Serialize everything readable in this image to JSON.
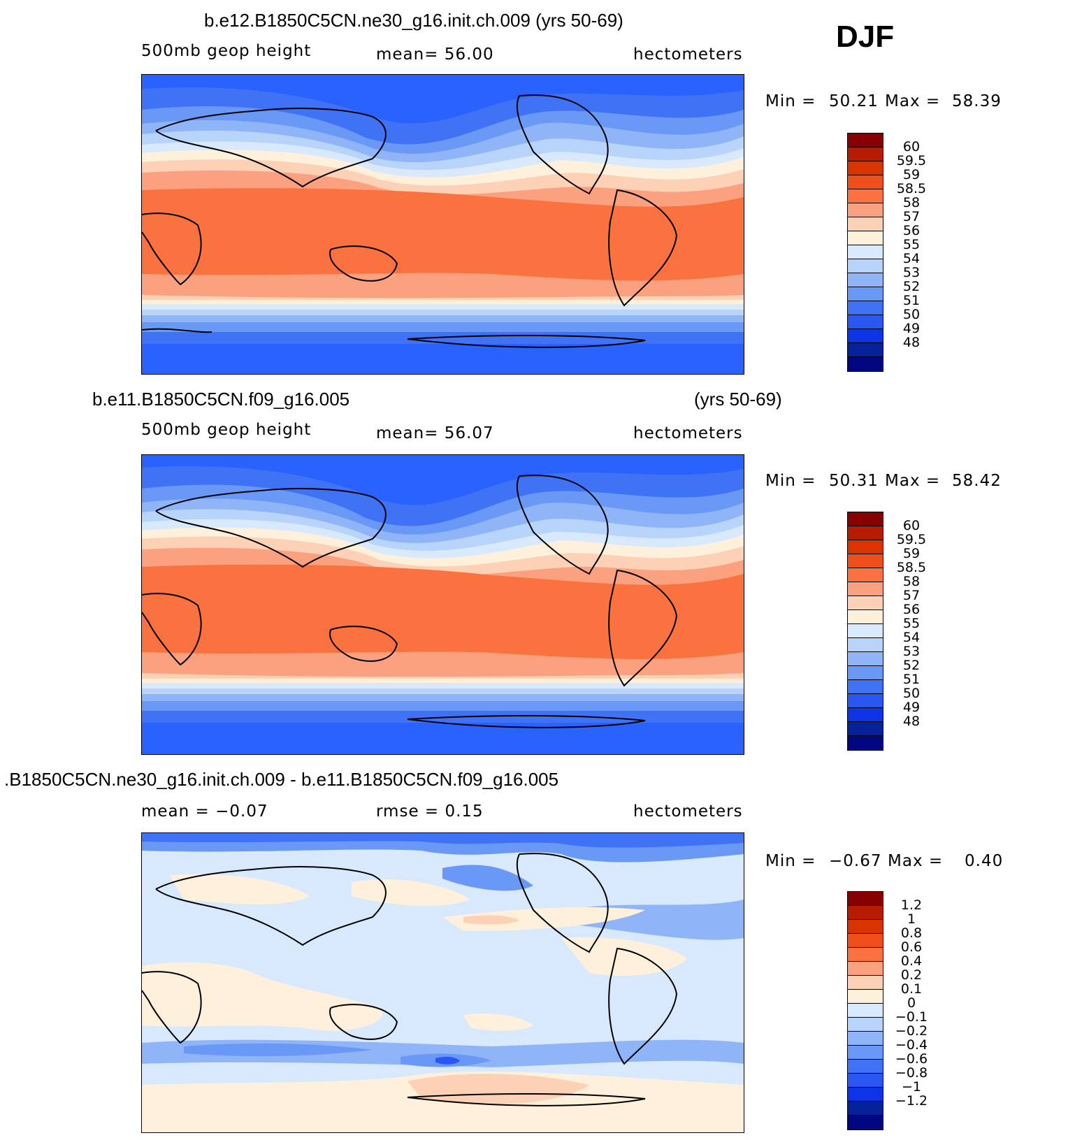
{
  "season": "DJF",
  "palette_abs": [
    "#890000",
    "#b71c00",
    "#d93300",
    "#f04f1b",
    "#fa7240",
    "#fca180",
    "#fdd1b5",
    "#fff0dc",
    "#d8e9fd",
    "#b8d4fb",
    "#8fb5f8",
    "#6a98f7",
    "#3f72f5",
    "#2a56f1",
    "#0d33e6",
    "#06229a",
    "#000780"
  ],
  "palette_diff": [
    "#890000",
    "#b71c00",
    "#d93300",
    "#f04f1b",
    "#fa7240",
    "#fca180",
    "#fdd1b5",
    "#fff0dc",
    "#d8e9fd",
    "#b8d4fb",
    "#8fb5f8",
    "#6a98f7",
    "#3f72f5",
    "#2a56f1",
    "#0d33e6",
    "#06229a",
    "#000780"
  ],
  "panels": [
    {
      "title": "b.e12.B1850C5CN.ne30_g16.init.ch.009 (yrs 50-69)",
      "title_right": "",
      "left": "500mb geop height",
      "mid": "mean=   56.00",
      "right": "hectometers",
      "min_label": "Min =",
      "min_val": "50.21",
      "max_label": "Max =",
      "max_val": "58.39",
      "levels": [
        "60",
        "59.5",
        "59",
        "58.5",
        "58",
        "57",
        "56",
        "55",
        "54",
        "53",
        "52",
        "51",
        "50",
        "49",
        "48"
      ],
      "field": "abs"
    },
    {
      "title": "b.e11.B1850C5CN.f09_g16.005",
      "title_right": "(yrs 50-69)",
      "left": "500mb geop height",
      "mid": "mean=   56.07",
      "right": "hectometers",
      "min_label": "Min =",
      "min_val": "50.31",
      "max_label": "Max =",
      "max_val": "58.42",
      "levels": [
        "60",
        "59.5",
        "59",
        "58.5",
        "58",
        "57",
        "56",
        "55",
        "54",
        "53",
        "52",
        "51",
        "50",
        "49",
        "48"
      ],
      "field": "abs"
    },
    {
      "title": ".B1850C5CN.ne30_g16.init.ch.009 - b.e11.B1850C5CN.f09_g16.005",
      "title_right": "",
      "left": "mean =   −0.07",
      "mid": "rmse =    0.15",
      "right": "hectometers",
      "min_label": "Min =",
      "min_val": "−0.67",
      "max_label": "Max =",
      "max_val": "0.40",
      "levels": [
        "1.2",
        "1",
        "0.8",
        "0.6",
        "0.4",
        "0.2",
        "0.1",
        "0",
        "−0.1",
        "−0.2",
        "−0.4",
        "−0.6",
        "−0.8",
        "−1",
        "−1.2"
      ],
      "field": "diff"
    }
  ]
}
